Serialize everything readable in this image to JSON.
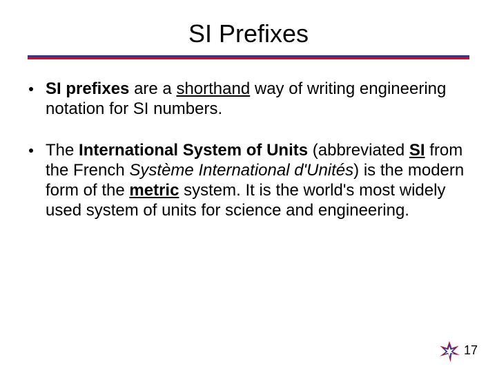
{
  "slide": {
    "title": "SI Prefixes",
    "title_fontsize": 36,
    "rule_colors": {
      "top": "#2a3b8f",
      "bottom": "#c8102e"
    },
    "bullets": [
      {
        "runs": [
          {
            "t": "SI prefixes",
            "b": true
          },
          {
            "t": " are a "
          },
          {
            "t": "shorthand",
            "u": true
          },
          {
            "t": " way of writing engineering notation for SI numbers."
          }
        ]
      },
      {
        "runs": [
          {
            "t": "The "
          },
          {
            "t": "International System of Units",
            "b": true
          },
          {
            "t": " (abbreviated "
          },
          {
            "t": "SI",
            "b": true,
            "u": true
          },
          {
            "t": " from the French "
          },
          {
            "t": "Système International d'Unités",
            "i": true
          },
          {
            "t": ") is the modern form of the "
          },
          {
            "t": "metric",
            "b": true,
            "u": true
          },
          {
            "t": " system. It is the world's most widely used system of units for science and engineering."
          }
        ]
      }
    ],
    "body_fontsize": 24,
    "page_number": "17",
    "logo_colors": {
      "red": "#c8102e",
      "blue": "#2a3b8f",
      "white": "#ffffff"
    },
    "background": "#ffffff"
  }
}
